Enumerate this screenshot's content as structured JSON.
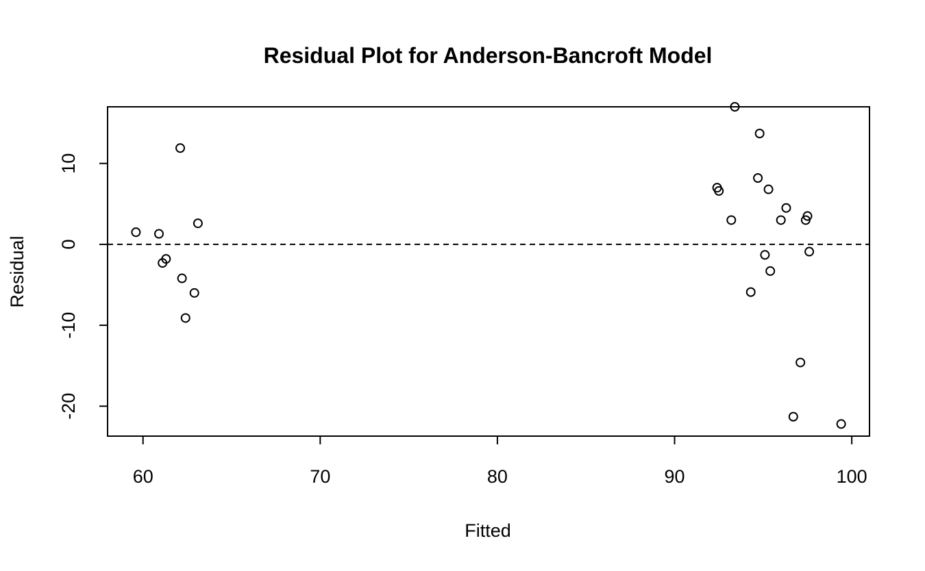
{
  "chart_data": {
    "type": "scatter",
    "title": "Residual Plot for Anderson-Bancroft Model",
    "xlabel": "Fitted",
    "ylabel": "Residual",
    "xlim": [
      58,
      101
    ],
    "ylim": [
      -23.7,
      17.0
    ],
    "xticks": [
      60,
      70,
      80,
      90,
      100
    ],
    "yticks": [
      -20,
      -10,
      0,
      10
    ],
    "grid": false,
    "reference_line": {
      "y": 0,
      "style": "dashed"
    },
    "points": [
      {
        "x": 59.6,
        "y": 1.5
      },
      {
        "x": 60.9,
        "y": 1.3
      },
      {
        "x": 61.1,
        "y": -2.3
      },
      {
        "x": 61.3,
        "y": -1.8
      },
      {
        "x": 62.1,
        "y": 11.9
      },
      {
        "x": 62.2,
        "y": -4.2
      },
      {
        "x": 62.4,
        "y": -9.1
      },
      {
        "x": 62.9,
        "y": -6.0
      },
      {
        "x": 63.1,
        "y": 2.6
      },
      {
        "x": 92.4,
        "y": 7.0
      },
      {
        "x": 92.5,
        "y": 6.6
      },
      {
        "x": 93.2,
        "y": 3.0
      },
      {
        "x": 93.4,
        "y": 17.0
      },
      {
        "x": 94.3,
        "y": -5.9
      },
      {
        "x": 94.7,
        "y": 8.2
      },
      {
        "x": 94.8,
        "y": 13.7
      },
      {
        "x": 95.1,
        "y": -1.3
      },
      {
        "x": 95.3,
        "y": 6.8
      },
      {
        "x": 95.4,
        "y": -3.3
      },
      {
        "x": 96.0,
        "y": 3.0
      },
      {
        "x": 96.3,
        "y": 4.5
      },
      {
        "x": 96.7,
        "y": -21.3
      },
      {
        "x": 97.1,
        "y": -14.6
      },
      {
        "x": 97.4,
        "y": 3.0
      },
      {
        "x": 97.5,
        "y": 3.5
      },
      {
        "x": 97.6,
        "y": -0.9
      },
      {
        "x": 99.4,
        "y": -22.2
      }
    ]
  }
}
